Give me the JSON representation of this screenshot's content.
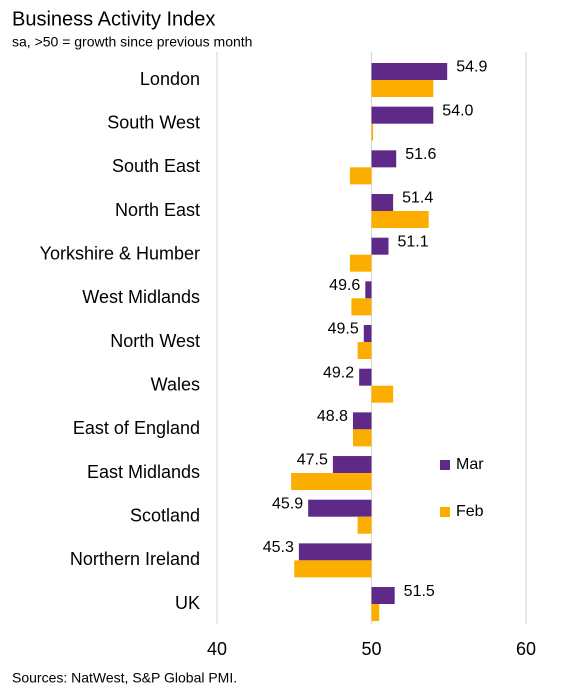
{
  "chart_data": {
    "type": "hbar",
    "title": "Business Activity Index",
    "subtitle": "sa, >50 = growth since previous month",
    "source": "Sources: NatWest, S&P Global PMI.",
    "categories": [
      "London",
      "South West",
      "South East",
      "North East",
      "Yorkshire & Humber",
      "West Midlands",
      "North West",
      "Wales",
      "East of England",
      "East Midlands",
      "Scotland",
      "Northern Ireland",
      "UK"
    ],
    "series": [
      {
        "name": "Mar",
        "color": "#5f2a87",
        "values": [
          54.9,
          54.0,
          51.6,
          51.4,
          51.1,
          49.6,
          49.5,
          49.2,
          48.8,
          47.5,
          45.9,
          45.3,
          51.5
        ],
        "value_labels": [
          "54.9",
          "54.0",
          "51.6",
          "51.4",
          "51.1",
          "49.6",
          "49.5",
          "49.2",
          "48.8",
          "47.5",
          "45.9",
          "45.3",
          "51.5"
        ]
      },
      {
        "name": "Feb",
        "color": "#fbad00",
        "values": [
          54.0,
          50.1,
          48.6,
          53.7,
          48.6,
          48.7,
          49.1,
          51.4,
          48.8,
          44.8,
          49.1,
          45.0,
          50.5
        ]
      }
    ],
    "base": 50,
    "xlim": [
      40,
      60
    ],
    "xticks": [
      40,
      50,
      60
    ],
    "grid": true,
    "legend": "right"
  }
}
